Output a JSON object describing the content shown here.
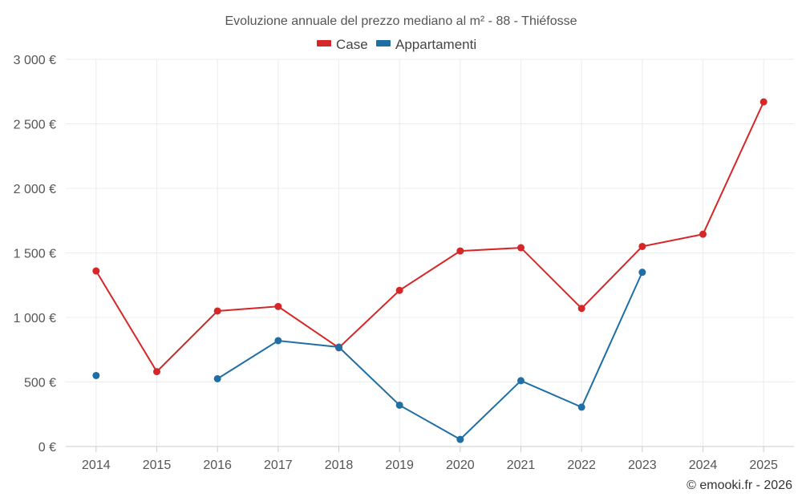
{
  "chart_data": {
    "type": "line",
    "title": "Evoluzione annuale del prezzo mediano al m² - 88 - Thiéfosse",
    "xlabel": "",
    "ylabel": "",
    "categories": [
      "2014",
      "2015",
      "2016",
      "2017",
      "2018",
      "2019",
      "2020",
      "2021",
      "2022",
      "2023",
      "2024",
      "2025"
    ],
    "ylim": [
      0,
      3000
    ],
    "yticks": [
      0,
      500,
      1000,
      1500,
      2000,
      2500,
      3000
    ],
    "ytick_labels": [
      "0 €",
      "500 €",
      "1 000 €",
      "1 500 €",
      "2 000 €",
      "2 500 €",
      "3 000 €"
    ],
    "grid": true,
    "legend_position": "top-center",
    "series": [
      {
        "name": "Case",
        "color": "#d62728",
        "values": [
          1360,
          580,
          1050,
          1085,
          765,
          1210,
          1515,
          1540,
          1070,
          1550,
          1645,
          2670
        ]
      },
      {
        "name": "Appartamenti",
        "color": "#1f6fa5",
        "values": [
          550,
          null,
          525,
          820,
          770,
          320,
          55,
          510,
          305,
          1350,
          null,
          null
        ]
      }
    ]
  },
  "credit": "© emooki.fr - 2026"
}
